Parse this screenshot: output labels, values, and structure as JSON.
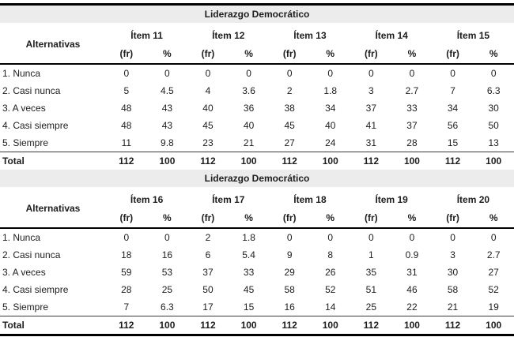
{
  "chart_data": {
    "type": "table",
    "note": "Frequency distribution table repeated in two stacked sections",
    "sections": [
      {
        "title": "Liderazgo Democrático",
        "alternatives_header": "Alternativas",
        "items": [
          "Ítem 11",
          "Ítem 12",
          "Ítem 13",
          "Ítem 14",
          "Ítem 15"
        ],
        "subheaders": [
          "(fr)",
          "%"
        ],
        "rows": [
          {
            "label": "1. Nunca",
            "bold": false,
            "values": [
              "0",
              "0",
              "0",
              "0",
              "0",
              "0",
              "0",
              "0",
              "0",
              "0"
            ]
          },
          {
            "label": "2. Casi nunca",
            "bold": false,
            "values": [
              "5",
              "4.5",
              "4",
              "3.6",
              "2",
              "1.8",
              "3",
              "2.7",
              "7",
              "6.3"
            ]
          },
          {
            "label": "3. A veces",
            "bold": false,
            "values": [
              "48",
              "43",
              "40",
              "36",
              "38",
              "34",
              "37",
              "33",
              "34",
              "30"
            ]
          },
          {
            "label": "4. Casi siempre",
            "bold": false,
            "values": [
              "48",
              "43",
              "45",
              "40",
              "45",
              "40",
              "41",
              "37",
              "56",
              "50"
            ]
          },
          {
            "label": "5. Siempre",
            "bold": false,
            "values": [
              "11",
              "9.8",
              "23",
              "21",
              "27",
              "24",
              "31",
              "28",
              "15",
              "13"
            ]
          },
          {
            "label": "Total",
            "bold": true,
            "values": [
              "112",
              "100",
              "112",
              "100",
              "112",
              "100",
              "112",
              "100",
              "112",
              "100"
            ]
          }
        ]
      },
      {
        "title": "Liderazgo Democrático",
        "alternatives_header": "Alternativas",
        "items": [
          "Ítem 16",
          "Ítem 17",
          "Ítem 18",
          "Ítem 19",
          "Ítem 20"
        ],
        "subheaders": [
          "(fr)",
          "%"
        ],
        "rows": [
          {
            "label": "1. Nunca",
            "bold": false,
            "values": [
              "0",
              "0",
              "2",
              "1.8",
              "0",
              "0",
              "0",
              "0",
              "0",
              "0"
            ]
          },
          {
            "label": "2. Casi nunca",
            "bold": false,
            "values": [
              "18",
              "16",
              "6",
              "5.4",
              "9",
              "8",
              "1",
              "0.9",
              "3",
              "2.7"
            ]
          },
          {
            "label": "3. A veces",
            "bold": false,
            "values": [
              "59",
              "53",
              "37",
              "33",
              "29",
              "26",
              "35",
              "31",
              "30",
              "27"
            ]
          },
          {
            "label": "4. Casi siempre",
            "bold": false,
            "values": [
              "28",
              "25",
              "50",
              "45",
              "58",
              "52",
              "51",
              "46",
              "58",
              "52"
            ]
          },
          {
            "label": "5. Siempre",
            "bold": false,
            "values": [
              "7",
              "6.3",
              "17",
              "15",
              "16",
              "14",
              "25",
              "22",
              "21",
              "19"
            ]
          },
          {
            "label": "Total",
            "bold": true,
            "values": [
              "112",
              "100",
              "112",
              "100",
              "112",
              "100",
              "112",
              "100",
              "112",
              "100"
            ]
          }
        ]
      }
    ],
    "colors": {
      "title_band_background": "#ececec",
      "text": "#1d1d1d",
      "border": "#000000"
    }
  }
}
